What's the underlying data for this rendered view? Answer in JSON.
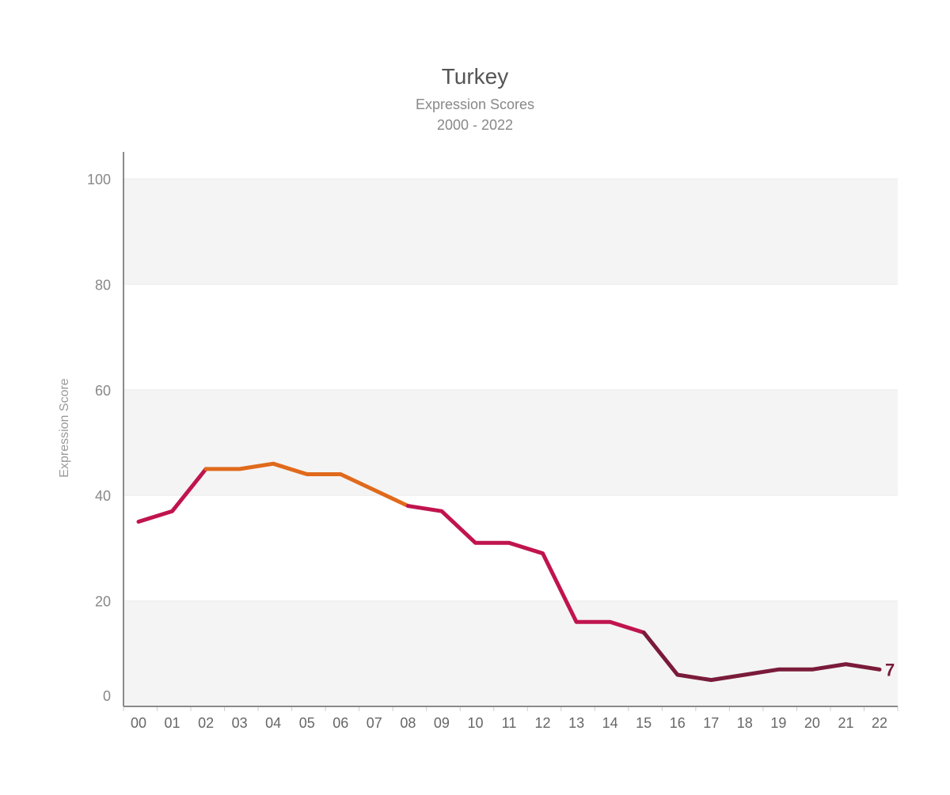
{
  "chart_data": {
    "type": "line",
    "title": "Turkey",
    "subtitle": "Expression Scores",
    "subtitle2": "2000 - 2022",
    "xlabel": "",
    "ylabel": "Expression Score",
    "ylim": [
      0,
      100
    ],
    "yticks": [
      0,
      20,
      40,
      60,
      80,
      100
    ],
    "categories": [
      "00",
      "01",
      "02",
      "03",
      "04",
      "05",
      "06",
      "07",
      "08",
      "09",
      "10",
      "11",
      "12",
      "13",
      "14",
      "15",
      "16",
      "17",
      "18",
      "19",
      "20",
      "21",
      "22"
    ],
    "values": [
      35,
      37,
      45,
      45,
      46,
      44,
      44,
      41,
      38,
      37,
      31,
      31,
      29,
      16,
      16,
      14,
      6,
      5,
      6,
      7,
      7,
      8,
      7
    ],
    "end_label": "7",
    "grid": true,
    "band_colors": [
      "#f4f4f4",
      "#ffffff"
    ],
    "segment_colors": [
      {
        "from": 0,
        "to": 2,
        "color": "#c0144e"
      },
      {
        "from": 2,
        "to": 8,
        "color": "#e06a1c"
      },
      {
        "from": 8,
        "to": 15,
        "color": "#c0144e"
      },
      {
        "from": 15,
        "to": 22,
        "color": "#7a1b3a"
      }
    ],
    "end_label_color": "#7a1b3a"
  }
}
